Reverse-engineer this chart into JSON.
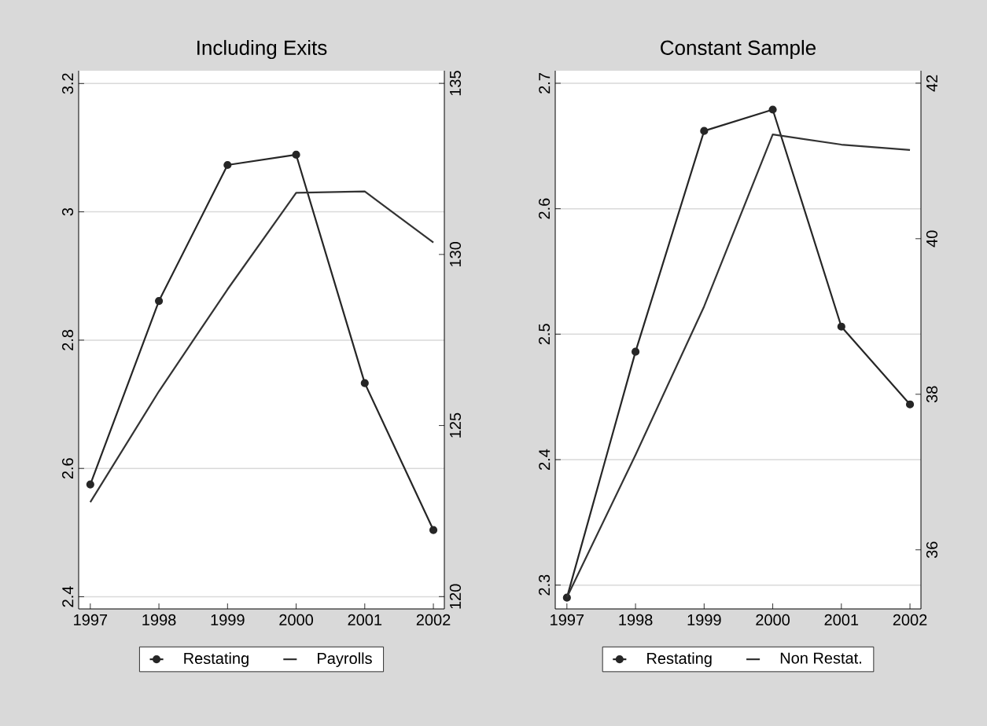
{
  "chart_data": [
    {
      "type": "line",
      "title": "Including Exits",
      "x": [
        1997,
        1998,
        1999,
        2000,
        2001,
        2002
      ],
      "xlim": [
        1996.83,
        2002.16
      ],
      "xticks": [
        1997,
        1998,
        1999,
        2000,
        2001,
        2002
      ],
      "ylim": [
        2.381,
        3.22
      ],
      "yticks": [
        2.4,
        2.6,
        2.8,
        3,
        3.2
      ],
      "y2lim": [
        119.64,
        135.37
      ],
      "y2ticks": [
        120,
        125,
        130,
        135
      ],
      "grid": "y",
      "legend": "bottom",
      "series": [
        {
          "name": "Restating",
          "color": "#262626",
          "marker": "circle",
          "values": [
            2.575,
            2.861,
            3.073,
            3.089,
            2.733,
            2.504
          ]
        },
        {
          "name": "Payrolls",
          "color": "#333333",
          "marker": "none",
          "axis": "y2",
          "values": [
            122.76,
            126.0,
            128.98,
            131.8,
            131.84,
            130.35
          ]
        }
      ]
    },
    {
      "type": "line",
      "title": "Constant Sample",
      "x": [
        1997,
        1998,
        1999,
        2000,
        2001,
        2002
      ],
      "xlim": [
        1996.83,
        2002.16
      ],
      "xticks": [
        1997,
        1998,
        1999,
        2000,
        2001,
        2002
      ],
      "ylim": [
        2.281,
        2.71
      ],
      "yticks": [
        2.3,
        2.4,
        2.5,
        2.6,
        2.7
      ],
      "y2lim": [
        35.24,
        42.16
      ],
      "y2ticks": [
        36,
        38,
        40,
        42
      ],
      "grid": "y",
      "legend": "bottom",
      "series": [
        {
          "name": "Restating",
          "color": "#262626",
          "marker": "circle",
          "values": [
            2.29,
            2.486,
            2.662,
            2.679,
            2.506,
            2.444
          ]
        },
        {
          "name": "Non Restat.",
          "color": "#333333",
          "marker": "none",
          "axis": "y2",
          "values": [
            35.39,
            37.22,
            39.13,
            41.34,
            41.21,
            41.14
          ]
        }
      ]
    }
  ]
}
